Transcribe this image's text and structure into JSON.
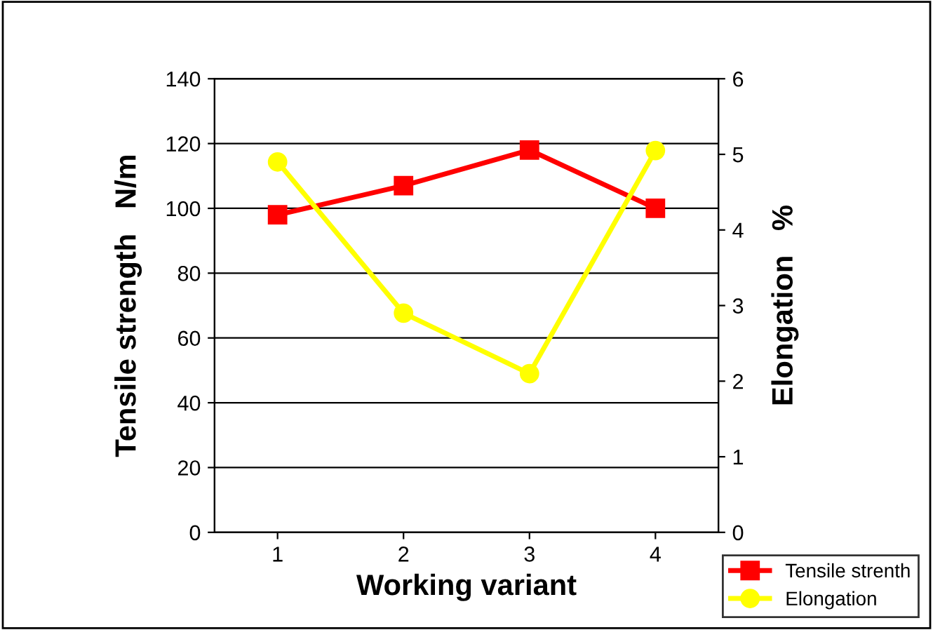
{
  "chart_data": {
    "type": "line",
    "categories": [
      "1",
      "2",
      "3",
      "4"
    ],
    "xlabel": "Working variant",
    "ylabel": "Tensile strength   N/m",
    "y2label": "Elongation   %",
    "series": [
      {
        "name": "Tensile strenth",
        "color": "#ff0000",
        "values": [
          98,
          107,
          118,
          100
        ],
        "marker": "square"
      },
      {
        "name": "Elongation",
        "color": "#ffff00",
        "values": [
          4.9,
          2.9,
          2.1,
          5.05
        ],
        "marker": "circle",
        "axis": "y2"
      }
    ],
    "ylim": [
      0,
      140
    ],
    "yticks": [
      0,
      20,
      40,
      60,
      80,
      100,
      120,
      140
    ],
    "y2lim": [
      0,
      6
    ],
    "y2ticks": [
      0,
      1,
      2,
      3,
      4,
      5,
      6
    ],
    "grid": "y",
    "legend": "bottom right",
    "line_style": "solid"
  }
}
